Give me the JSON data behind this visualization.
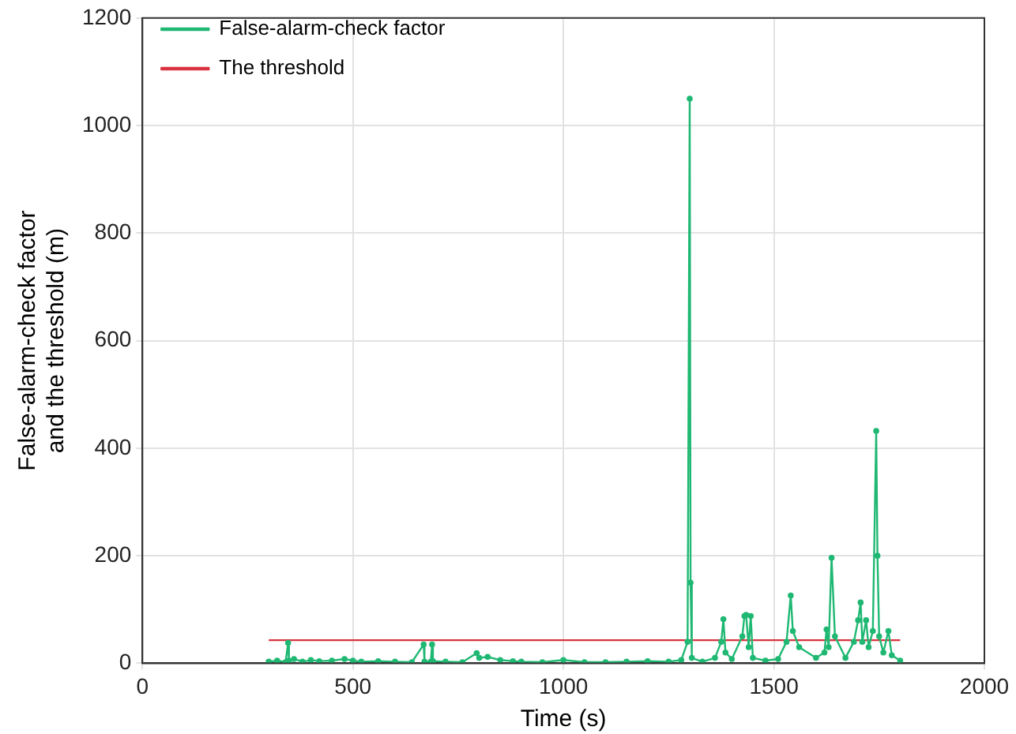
{
  "chart_data": {
    "type": "line",
    "xlabel": "Time (s)",
    "ylabel": "False-alarm-check factor\nand the threshold (m)",
    "xlim": [
      0,
      2000
    ],
    "xticks": [
      0,
      500,
      1000,
      1500,
      2000
    ],
    "ylim": [
      0,
      1200
    ],
    "yticks": [
      0,
      200,
      400,
      600,
      800,
      1000,
      1200
    ],
    "grid": true,
    "legend": "top left",
    "series": [
      {
        "name": "False-alarm-check factor",
        "color": "#1fb873",
        "marker": "circle",
        "x": [
          300,
          320,
          340,
          346,
          348,
          360,
          380,
          400,
          420,
          450,
          480,
          500,
          520,
          560,
          600,
          640,
          668,
          670,
          685,
          688,
          690,
          720,
          760,
          794,
          800,
          820,
          850,
          880,
          900,
          950,
          1000,
          1050,
          1100,
          1150,
          1200,
          1250,
          1280,
          1295,
          1300,
          1302,
          1305,
          1330,
          1360,
          1375,
          1380,
          1385,
          1400,
          1425,
          1430,
          1434,
          1440,
          1445,
          1450,
          1480,
          1510,
          1530,
          1540,
          1545,
          1560,
          1600,
          1620,
          1625,
          1630,
          1637,
          1645,
          1670,
          1690,
          1700,
          1706,
          1710,
          1719,
          1725,
          1735,
          1743,
          1746,
          1750,
          1760,
          1772,
          1780,
          1800
        ],
        "values": [
          3,
          5,
          2,
          38,
          5,
          8,
          3,
          6,
          4,
          5,
          8,
          5,
          3,
          4,
          3,
          2,
          35,
          3,
          3,
          35,
          4,
          3,
          2,
          19,
          10,
          12,
          6,
          4,
          3,
          2,
          6,
          2,
          2,
          3,
          4,
          3,
          6,
          40,
          1050,
          150,
          10,
          3,
          10,
          40,
          82,
          20,
          8,
          50,
          88,
          90,
          30,
          88,
          10,
          5,
          8,
          40,
          126,
          60,
          30,
          10,
          20,
          63,
          30,
          196,
          50,
          10,
          40,
          80,
          113,
          40,
          80,
          30,
          60,
          432,
          200,
          50,
          20,
          60,
          15,
          5
        ]
      },
      {
        "name": "The threshold",
        "color": "#d9333f",
        "marker": "none",
        "x": [
          300,
          1800
        ],
        "values": [
          43,
          43
        ]
      }
    ]
  }
}
